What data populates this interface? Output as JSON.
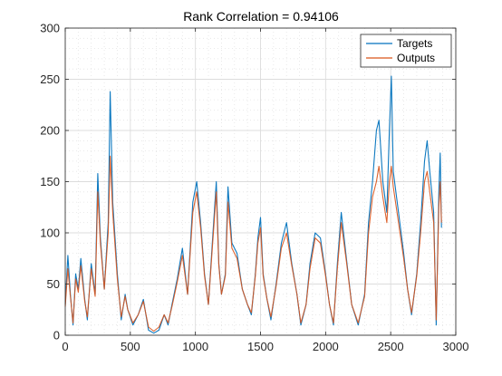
{
  "chart_data": {
    "type": "line",
    "title": "Rank Correlation = 0.94106",
    "xlabel": "",
    "ylabel": "",
    "xlim": [
      0,
      3000
    ],
    "ylim": [
      0,
      300
    ],
    "xticks": [
      0,
      500,
      1000,
      1500,
      2000,
      2500,
      3000
    ],
    "yticks": [
      0,
      50,
      100,
      150,
      200,
      250,
      300
    ],
    "grid": true,
    "minor_grid": true,
    "legend_position": "top-right",
    "series": [
      {
        "name": "Targets",
        "color": "#0072BD",
        "points": [
          [
            0,
            30
          ],
          [
            20,
            78
          ],
          [
            40,
            40
          ],
          [
            60,
            10
          ],
          [
            80,
            60
          ],
          [
            100,
            45
          ],
          [
            120,
            75
          ],
          [
            150,
            35
          ],
          [
            170,
            15
          ],
          [
            200,
            70
          ],
          [
            230,
            40
          ],
          [
            250,
            158
          ],
          [
            270,
            95
          ],
          [
            300,
            45
          ],
          [
            330,
            110
          ],
          [
            345,
            238
          ],
          [
            365,
            130
          ],
          [
            400,
            60
          ],
          [
            430,
            15
          ],
          [
            460,
            40
          ],
          [
            480,
            25
          ],
          [
            520,
            10
          ],
          [
            560,
            20
          ],
          [
            600,
            35
          ],
          [
            640,
            5
          ],
          [
            680,
            2
          ],
          [
            720,
            5
          ],
          [
            760,
            20
          ],
          [
            790,
            10
          ],
          [
            820,
            30
          ],
          [
            860,
            55
          ],
          [
            900,
            85
          ],
          [
            940,
            40
          ],
          [
            980,
            130
          ],
          [
            1010,
            150
          ],
          [
            1040,
            110
          ],
          [
            1070,
            60
          ],
          [
            1100,
            30
          ],
          [
            1130,
            90
          ],
          [
            1160,
            150
          ],
          [
            1180,
            70
          ],
          [
            1200,
            40
          ],
          [
            1230,
            60
          ],
          [
            1250,
            145
          ],
          [
            1280,
            90
          ],
          [
            1320,
            80
          ],
          [
            1360,
            45
          ],
          [
            1400,
            30
          ],
          [
            1430,
            20
          ],
          [
            1460,
            60
          ],
          [
            1480,
            95
          ],
          [
            1500,
            115
          ],
          [
            1520,
            60
          ],
          [
            1550,
            35
          ],
          [
            1580,
            15
          ],
          [
            1620,
            50
          ],
          [
            1660,
            90
          ],
          [
            1700,
            110
          ],
          [
            1740,
            70
          ],
          [
            1780,
            40
          ],
          [
            1810,
            10
          ],
          [
            1850,
            30
          ],
          [
            1880,
            70
          ],
          [
            1920,
            100
          ],
          [
            1960,
            95
          ],
          [
            2000,
            60
          ],
          [
            2030,
            30
          ],
          [
            2060,
            10
          ],
          [
            2090,
            70
          ],
          [
            2120,
            120
          ],
          [
            2160,
            75
          ],
          [
            2200,
            30
          ],
          [
            2250,
            10
          ],
          [
            2300,
            40
          ],
          [
            2330,
            110
          ],
          [
            2360,
            150
          ],
          [
            2390,
            200
          ],
          [
            2410,
            210
          ],
          [
            2440,
            150
          ],
          [
            2470,
            120
          ],
          [
            2490,
            200
          ],
          [
            2505,
            253
          ],
          [
            2520,
            160
          ],
          [
            2560,
            120
          ],
          [
            2600,
            80
          ],
          [
            2630,
            45
          ],
          [
            2660,
            20
          ],
          [
            2700,
            60
          ],
          [
            2730,
            110
          ],
          [
            2760,
            170
          ],
          [
            2780,
            190
          ],
          [
            2800,
            160
          ],
          [
            2830,
            120
          ],
          [
            2850,
            10
          ],
          [
            2870,
            140
          ],
          [
            2880,
            178
          ],
          [
            2890,
            105
          ]
        ]
      },
      {
        "name": "Outputs",
        "color": "#D95319",
        "points": [
          [
            0,
            28
          ],
          [
            20,
            65
          ],
          [
            40,
            38
          ],
          [
            60,
            12
          ],
          [
            80,
            55
          ],
          [
            100,
            42
          ],
          [
            120,
            68
          ],
          [
            150,
            33
          ],
          [
            170,
            18
          ],
          [
            200,
            65
          ],
          [
            230,
            38
          ],
          [
            250,
            140
          ],
          [
            270,
            90
          ],
          [
            300,
            45
          ],
          [
            330,
            100
          ],
          [
            345,
            175
          ],
          [
            365,
            120
          ],
          [
            400,
            55
          ],
          [
            430,
            18
          ],
          [
            460,
            38
          ],
          [
            480,
            25
          ],
          [
            520,
            12
          ],
          [
            560,
            20
          ],
          [
            600,
            33
          ],
          [
            640,
            8
          ],
          [
            680,
            4
          ],
          [
            720,
            8
          ],
          [
            760,
            20
          ],
          [
            790,
            12
          ],
          [
            820,
            28
          ],
          [
            860,
            52
          ],
          [
            900,
            78
          ],
          [
            940,
            40
          ],
          [
            980,
            120
          ],
          [
            1010,
            140
          ],
          [
            1040,
            105
          ],
          [
            1070,
            58
          ],
          [
            1100,
            30
          ],
          [
            1130,
            85
          ],
          [
            1160,
            140
          ],
          [
            1180,
            68
          ],
          [
            1200,
            40
          ],
          [
            1230,
            58
          ],
          [
            1250,
            130
          ],
          [
            1280,
            85
          ],
          [
            1320,
            75
          ],
          [
            1360,
            45
          ],
          [
            1400,
            30
          ],
          [
            1430,
            22
          ],
          [
            1460,
            58
          ],
          [
            1480,
            90
          ],
          [
            1500,
            105
          ],
          [
            1520,
            58
          ],
          [
            1550,
            35
          ],
          [
            1580,
            18
          ],
          [
            1620,
            48
          ],
          [
            1660,
            85
          ],
          [
            1700,
            100
          ],
          [
            1740,
            68
          ],
          [
            1780,
            40
          ],
          [
            1810,
            12
          ],
          [
            1850,
            30
          ],
          [
            1880,
            65
          ],
          [
            1920,
            95
          ],
          [
            1960,
            90
          ],
          [
            2000,
            58
          ],
          [
            2030,
            30
          ],
          [
            2060,
            12
          ],
          [
            2090,
            65
          ],
          [
            2120,
            110
          ],
          [
            2160,
            72
          ],
          [
            2200,
            30
          ],
          [
            2250,
            12
          ],
          [
            2300,
            38
          ],
          [
            2330,
            100
          ],
          [
            2360,
            135
          ],
          [
            2390,
            150
          ],
          [
            2410,
            165
          ],
          [
            2440,
            135
          ],
          [
            2470,
            110
          ],
          [
            2490,
            150
          ],
          [
            2505,
            165
          ],
          [
            2520,
            145
          ],
          [
            2560,
            110
          ],
          [
            2600,
            75
          ],
          [
            2630,
            45
          ],
          [
            2660,
            22
          ],
          [
            2700,
            58
          ],
          [
            2730,
            100
          ],
          [
            2760,
            150
          ],
          [
            2780,
            160
          ],
          [
            2800,
            140
          ],
          [
            2830,
            110
          ],
          [
            2850,
            15
          ],
          [
            2870,
            125
          ],
          [
            2880,
            150
          ],
          [
            2890,
            110
          ]
        ]
      }
    ]
  }
}
